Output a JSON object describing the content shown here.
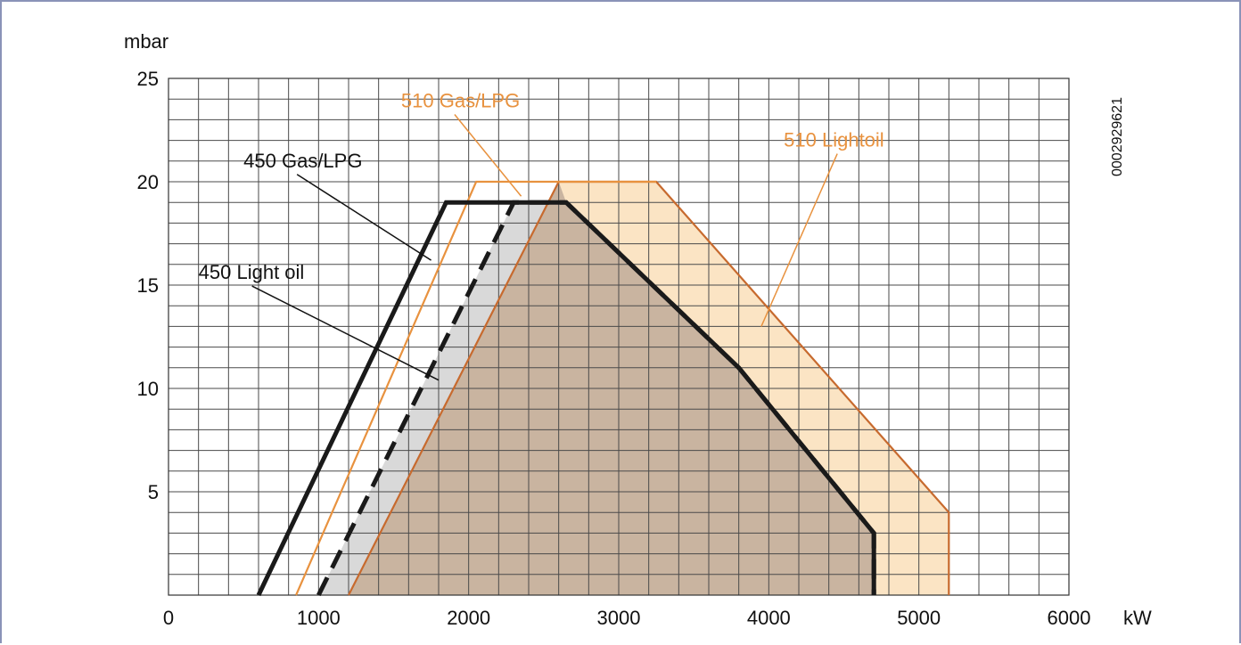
{
  "chart_data": {
    "type": "area",
    "x_unit": "kW",
    "y_unit": "mbar",
    "xlim": [
      0,
      6000
    ],
    "ylim": [
      0,
      25
    ],
    "x_ticks": [
      0,
      1000,
      2000,
      3000,
      4000,
      5000,
      6000
    ],
    "y_ticks": [
      5,
      10,
      15,
      20,
      25
    ],
    "x_tick_labels": [
      "0",
      "1000",
      "2000",
      "3000",
      "4000",
      "5000",
      "6000"
    ],
    "y_tick_labels": [
      "5",
      "10",
      "15",
      "20",
      "25"
    ],
    "grid": true,
    "id_code": "0002929621",
    "series": [
      {
        "name": "510 Lightoil",
        "color": "#c76a2e",
        "fill": "#fbe4c4",
        "style": "solid-thin",
        "points": [
          [
            1200,
            0
          ],
          [
            2600,
            20
          ],
          [
            3250,
            20
          ],
          [
            5200,
            4
          ],
          [
            5200,
            0
          ]
        ]
      },
      {
        "name": "450 Light oil",
        "color": "#1a1a1a",
        "fill": "#d9d9d9",
        "style": "dashed-thick",
        "points": [
          [
            1000,
            0
          ],
          [
            2300,
            19
          ],
          [
            2650,
            19
          ],
          [
            3800,
            11
          ],
          [
            4700,
            3
          ],
          [
            4700,
            0
          ]
        ]
      },
      {
        "name": "510 Gas/LPG",
        "color": "#e8923f",
        "style": "solid-thin",
        "points": [
          [
            850,
            0
          ],
          [
            2050,
            20
          ],
          [
            3250,
            20
          ]
        ]
      },
      {
        "name": "450 Gas/LPG",
        "color": "#1a1a1a",
        "style": "solid-thick",
        "points": [
          [
            600,
            0
          ],
          [
            1850,
            19
          ],
          [
            2650,
            19
          ],
          [
            3800,
            11
          ],
          [
            4700,
            3
          ],
          [
            4700,
            0
          ]
        ]
      }
    ],
    "annotations": [
      {
        "text": "450 Gas/LPG",
        "color": "#111111",
        "label_at": [
          500,
          20.7
        ],
        "pointer_to": [
          1750,
          16.2
        ]
      },
      {
        "text": "450 Light oil",
        "color": "#111111",
        "label_at": [
          200,
          15.3
        ],
        "pointer_to": [
          1800,
          10.4
        ]
      },
      {
        "text": "510 Gas/LPG",
        "color": "#e8923f",
        "label_at": [
          1550,
          23.6
        ],
        "pointer_to": [
          2350,
          19.3
        ]
      },
      {
        "text": "510 Lightoil",
        "color": "#e8923f",
        "label_at": [
          4100,
          21.7
        ],
        "pointer_to": [
          3950,
          13.0
        ]
      }
    ],
    "shaded_overlap": {
      "color": "#c9b4a0",
      "points": [
        [
          1200,
          0
        ],
        [
          2600,
          20
        ],
        [
          2650,
          19
        ],
        [
          3800,
          11
        ],
        [
          4700,
          3
        ],
        [
          4700,
          0
        ]
      ]
    }
  }
}
